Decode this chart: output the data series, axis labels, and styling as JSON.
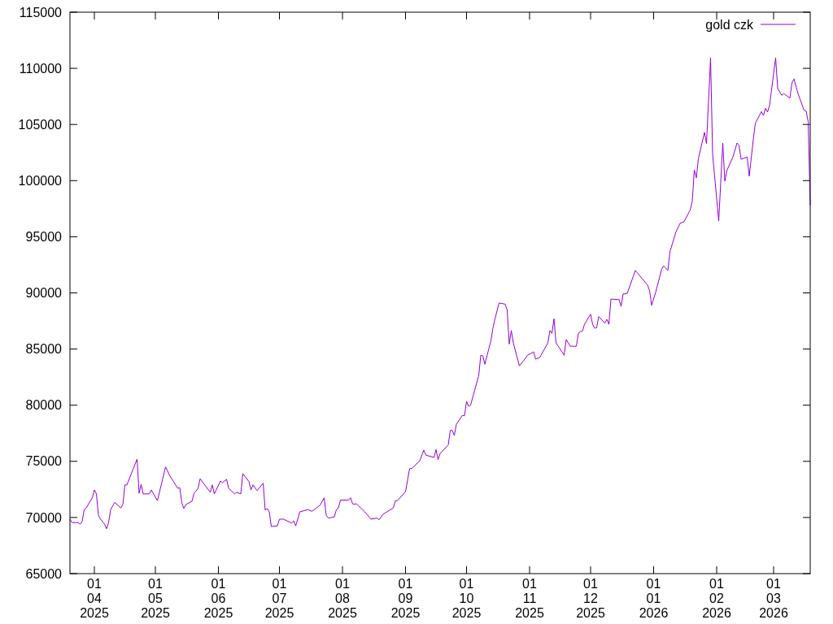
{
  "chart_data": {
    "type": "line",
    "legend": "top right",
    "grid": false,
    "xlim": [
      "2025-03-20",
      "2026-03-19"
    ],
    "xticks": [
      {
        "value": "2025-04-01",
        "label": "01\n04\n2025"
      },
      {
        "value": "2025-05-01",
        "label": "01\n05\n2025"
      },
      {
        "value": "2025-06-01",
        "label": "01\n06\n2025"
      },
      {
        "value": "2025-07-01",
        "label": "01\n07\n2025"
      },
      {
        "value": "2025-08-01",
        "label": "01\n08\n2025"
      },
      {
        "value": "2025-09-01",
        "label": "01\n09\n2025"
      },
      {
        "value": "2025-10-01",
        "label": "01\n10\n2025"
      },
      {
        "value": "2025-11-01",
        "label": "01\n11\n2025"
      },
      {
        "value": "2025-12-01",
        "label": "01\n12\n2025"
      },
      {
        "value": "2026-01-01",
        "label": "01\n01\n2026"
      },
      {
        "value": "2026-02-01",
        "label": "01\n02\n2026"
      },
      {
        "value": "2026-03-01",
        "label": "01\n03\n2026"
      }
    ],
    "ylim": [
      65000,
      115000
    ],
    "yticks": [
      65000,
      70000,
      75000,
      80000,
      85000,
      90000,
      95000,
      100000,
      105000,
      110000,
      115000
    ],
    "x": [
      "2025-03-20",
      "2025-03-21",
      "2025-03-24",
      "2025-03-25",
      "2025-03-26",
      "2025-03-27",
      "2025-03-28",
      "2025-03-31",
      "2025-04-01",
      "2025-04-02",
      "2025-04-03",
      "2025-04-04",
      "2025-04-06",
      "2025-04-07",
      "2025-04-08",
      "2025-04-09",
      "2025-04-11",
      "2025-04-14",
      "2025-04-15",
      "2025-04-16",
      "2025-04-17",
      "2025-04-22",
      "2025-04-23",
      "2025-04-24",
      "2025-04-25",
      "2025-04-28",
      "2025-04-29",
      "2025-05-02",
      "2025-05-06",
      "2025-05-08",
      "2025-05-12",
      "2025-05-13",
      "2025-05-14",
      "2025-05-15",
      "2025-05-16",
      "2025-05-19",
      "2025-05-20",
      "2025-05-22",
      "2025-05-23",
      "2025-05-28",
      "2025-05-29",
      "2025-05-30",
      "2025-06-02",
      "2025-06-03",
      "2025-06-05",
      "2025-06-06",
      "2025-06-09",
      "2025-06-10",
      "2025-06-12",
      "2025-06-13",
      "2025-06-16",
      "2025-06-17",
      "2025-06-18",
      "2025-06-20",
      "2025-06-23",
      "2025-06-24",
      "2025-06-25",
      "2025-06-26",
      "2025-06-27",
      "2025-06-30",
      "2025-07-01",
      "2025-07-03",
      "2025-07-07",
      "2025-07-08",
      "2025-07-09",
      "2025-07-10",
      "2025-07-11",
      "2025-07-15",
      "2025-07-17",
      "2025-07-21",
      "2025-07-23",
      "2025-07-24",
      "2025-07-25",
      "2025-07-28",
      "2025-07-29",
      "2025-07-30",
      "2025-07-31",
      "2025-08-04",
      "2025-08-05",
      "2025-08-06",
      "2025-08-08",
      "2025-08-12",
      "2025-08-15",
      "2025-08-18",
      "2025-08-19",
      "2025-08-21",
      "2025-08-26",
      "2025-08-27",
      "2025-08-28",
      "2025-09-01",
      "2025-09-03",
      "2025-09-04",
      "2025-09-08",
      "2025-09-10",
      "2025-09-11",
      "2025-09-15",
      "2025-09-16",
      "2025-09-17",
      "2025-09-18",
      "2025-09-22",
      "2025-09-23",
      "2025-09-24",
      "2025-09-25",
      "2025-09-26",
      "2025-09-29",
      "2025-09-30",
      "2025-10-01",
      "2025-10-02",
      "2025-10-03",
      "2025-10-07",
      "2025-10-08",
      "2025-10-09",
      "2025-10-10",
      "2025-10-13",
      "2025-10-14",
      "2025-10-15",
      "2025-10-17",
      "2025-10-20",
      "2025-10-21",
      "2025-10-22",
      "2025-10-23",
      "2025-10-24",
      "2025-10-27",
      "2025-10-29",
      "2025-10-31",
      "2025-11-03",
      "2025-11-04",
      "2025-11-06",
      "2025-11-10",
      "2025-11-11",
      "2025-11-12",
      "2025-11-13",
      "2025-11-14",
      "2025-11-18",
      "2025-11-19",
      "2025-11-21",
      "2025-11-24",
      "2025-11-25",
      "2025-11-26",
      "2025-11-27",
      "2025-11-28",
      "2025-12-01",
      "2025-12-02",
      "2025-12-03",
      "2025-12-04",
      "2025-12-05",
      "2025-12-08",
      "2025-12-09",
      "2025-12-10",
      "2025-12-11",
      "2025-12-15",
      "2025-12-16",
      "2025-12-17",
      "2025-12-19",
      "2025-12-23",
      "2025-12-29",
      "2025-12-30",
      "2025-12-31",
      "2026-01-02",
      "2026-01-05",
      "2026-01-06",
      "2026-01-08",
      "2026-01-09",
      "2026-01-12",
      "2026-01-14",
      "2026-01-16",
      "2026-01-19",
      "2026-01-20",
      "2026-01-21",
      "2026-01-22",
      "2026-01-23",
      "2026-01-26",
      "2026-01-27",
      "2026-01-29",
      "2026-01-30",
      "2026-02-02",
      "2026-02-04",
      "2026-02-05",
      "2026-02-06",
      "2026-02-09",
      "2026-02-11",
      "2026-02-12",
      "2026-02-13",
      "2026-02-16",
      "2026-02-17",
      "2026-02-19",
      "2026-02-20",
      "2026-02-23",
      "2026-02-24",
      "2026-02-25",
      "2026-02-26",
      "2026-02-27",
      "2026-03-02",
      "2026-03-03",
      "2026-03-05",
      "2026-03-06",
      "2026-03-09",
      "2026-03-10",
      "2026-03-11",
      "2026-03-13",
      "2026-03-16",
      "2026-03-17",
      "2026-03-18",
      "2026-03-19"
    ],
    "series": [
      {
        "name": "gold czk",
        "color": "#9400d3",
        "values": [
          69850,
          69550,
          69550,
          69400,
          69650,
          70700,
          70850,
          71750,
          72450,
          72100,
          70200,
          69850,
          69400,
          69000,
          69550,
          70700,
          71350,
          70850,
          71150,
          72900,
          72900,
          75200,
          72150,
          72950,
          72100,
          72100,
          72450,
          71500,
          74500,
          73750,
          72600,
          72650,
          71300,
          70800,
          71150,
          71450,
          72150,
          72600,
          73450,
          72250,
          72900,
          72100,
          73250,
          73100,
          73400,
          72600,
          72100,
          72250,
          72100,
          73900,
          73200,
          72450,
          72900,
          72400,
          73050,
          70650,
          70800,
          70500,
          69200,
          69250,
          69850,
          69850,
          69500,
          69700,
          69250,
          69850,
          70500,
          70700,
          70550,
          71100,
          71750,
          70200,
          69950,
          70050,
          70700,
          70850,
          71550,
          71550,
          71750,
          71200,
          71200,
          70500,
          69850,
          69950,
          69800,
          70300,
          70850,
          71500,
          71500,
          72300,
          74350,
          74350,
          75050,
          76000,
          75550,
          75350,
          76050,
          75150,
          75700,
          76450,
          77750,
          77750,
          77300,
          78300,
          79100,
          79050,
          80350,
          79900,
          80000,
          82650,
          84450,
          84400,
          83650,
          85750,
          86900,
          87700,
          89100,
          89000,
          88450,
          85450,
          86650,
          85550,
          83500,
          83950,
          84450,
          84750,
          84100,
          84250,
          85550,
          86650,
          86400,
          87700,
          85550,
          84450,
          85850,
          85250,
          85250,
          86400,
          86550,
          86600,
          87200,
          88100,
          87200,
          86850,
          86900,
          87900,
          87300,
          87650,
          87200,
          89450,
          89400,
          88800,
          89900,
          89950,
          92000,
          90700,
          90200,
          88900,
          90050,
          92150,
          92400,
          92000,
          93650,
          95450,
          96200,
          96350,
          97400,
          98150,
          100950,
          100250,
          101950,
          104300,
          103300,
          110950,
          102350,
          96400,
          103350,
          99950,
          100900,
          102100,
          103350,
          103150,
          101900,
          102100,
          100400,
          103650,
          105100,
          106150,
          105800,
          106450,
          106100,
          106700,
          110950,
          108200,
          107600,
          107750,
          107350,
          108700,
          109050,
          107750,
          106250,
          106200,
          105250,
          97800
        ]
      }
    ]
  }
}
